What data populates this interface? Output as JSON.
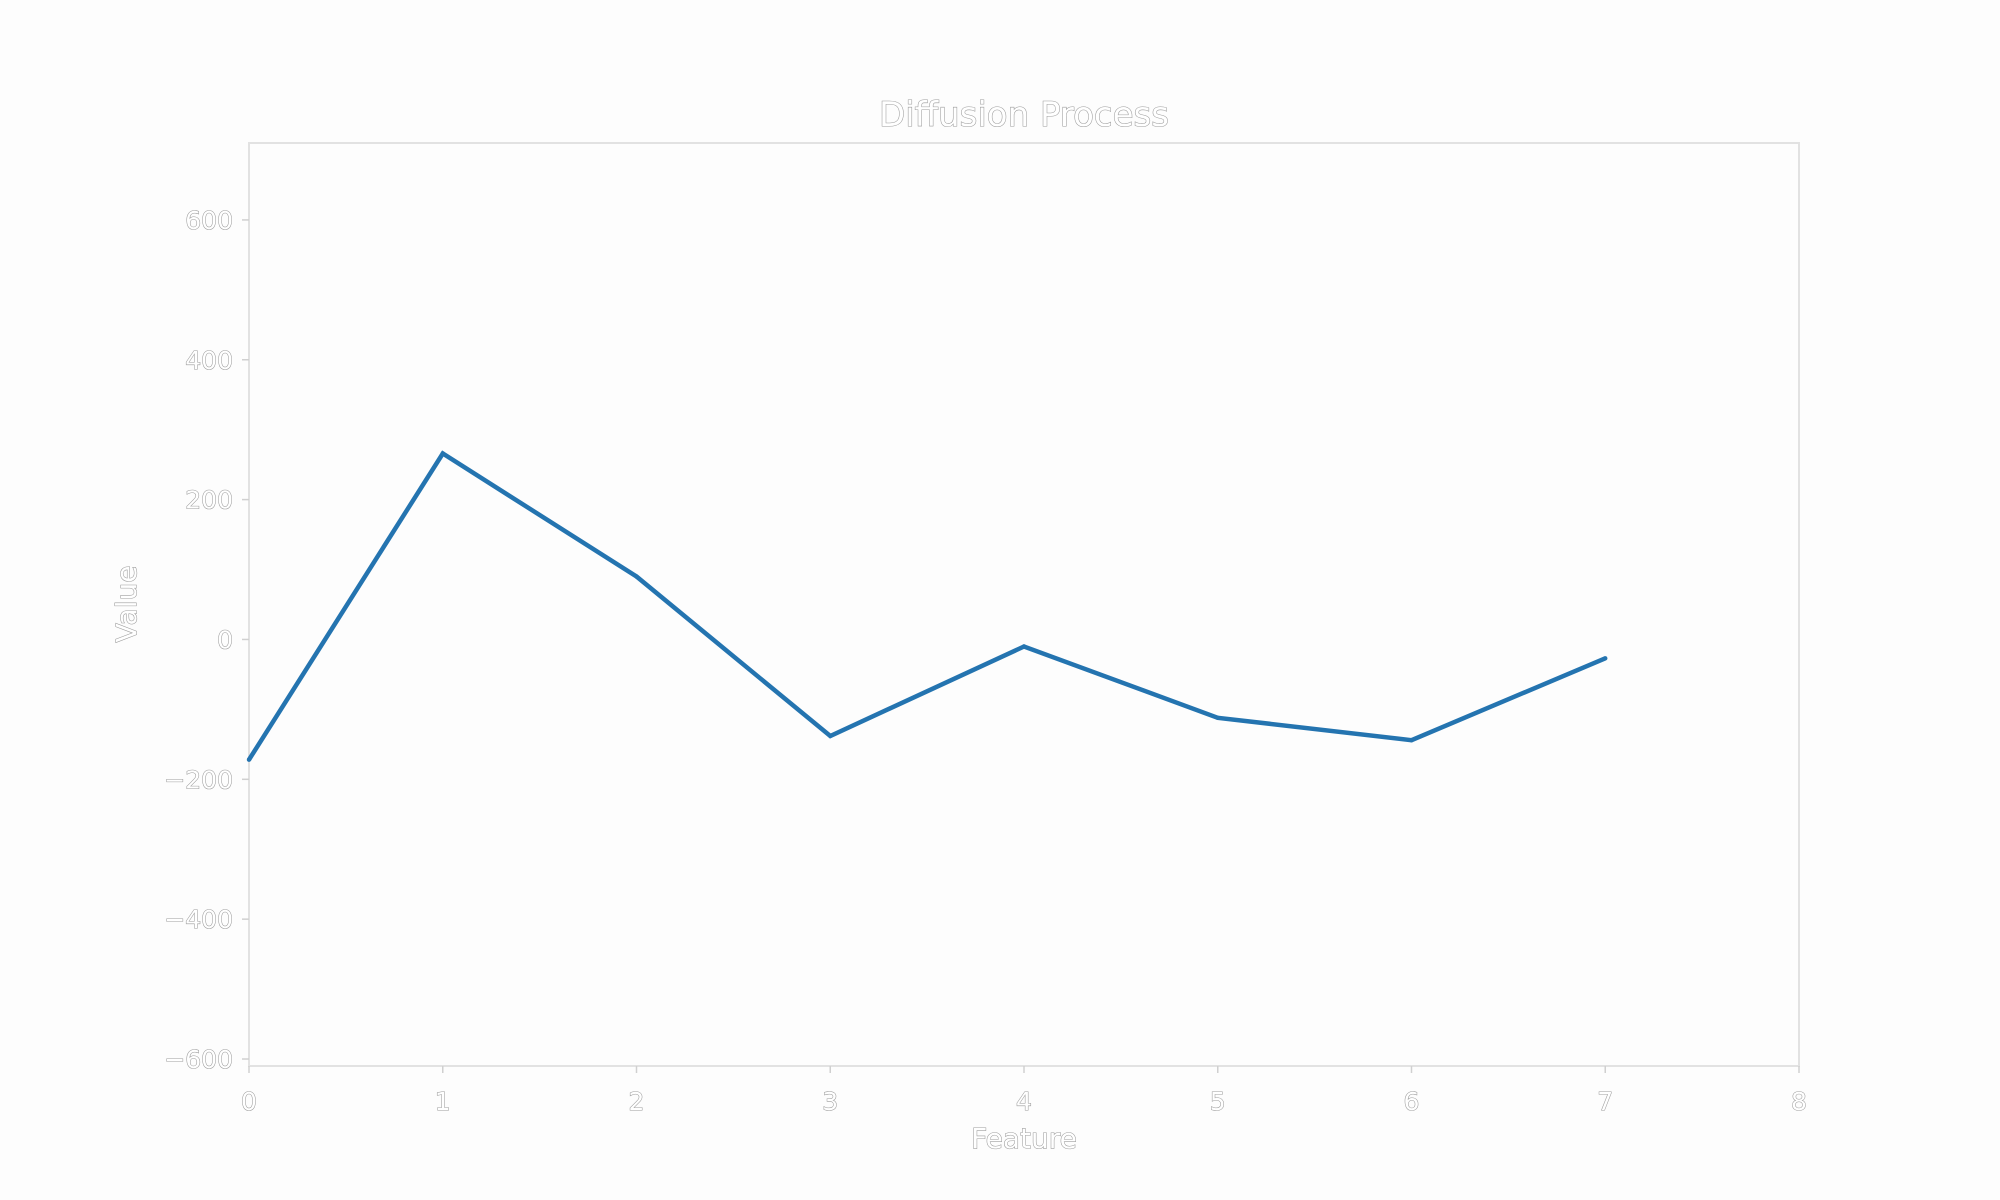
{
  "chart_data": {
    "type": "line",
    "title": "Diffusion Process",
    "xlabel": "Feature",
    "ylabel": "Value",
    "xlim": [
      0,
      8
    ],
    "ylim": [
      -610,
      710
    ],
    "x_ticks": [
      "0",
      "1",
      "2",
      "3",
      "4",
      "5",
      "6",
      "7",
      "8"
    ],
    "y_ticks": [
      "600",
      "400",
      "200",
      "0",
      "−200",
      "−400",
      "−600"
    ],
    "grid": false,
    "series": [
      {
        "x": [
          0,
          1,
          2,
          3,
          4,
          5,
          6,
          7
        ],
        "values": [
          -172,
          266,
          90,
          -138,
          -10,
          -112,
          -144,
          -27
        ],
        "color": "#2474b0"
      }
    ],
    "colors": {
      "line": "#2474b0",
      "frame": "#e2e2e2",
      "text_outline": "#9a9a9a"
    }
  }
}
